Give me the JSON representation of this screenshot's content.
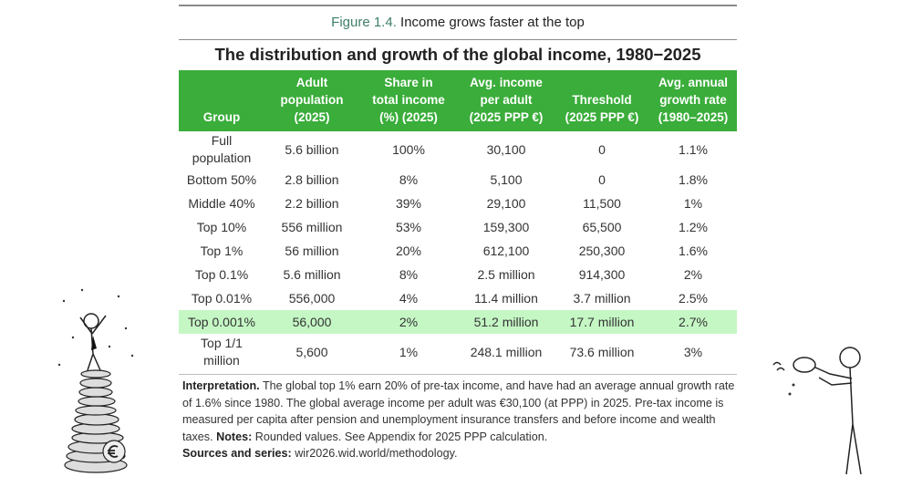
{
  "figure": {
    "number": "Figure 1.4.",
    "title": "Income grows faster at the top"
  },
  "subtitle": "The distribution and growth of the global income, 1980−2025",
  "table": {
    "headers": [
      [
        "Group"
      ],
      [
        "Adult",
        "population",
        "(2025)"
      ],
      [
        "Share in",
        "total income",
        "(%) (2025)"
      ],
      [
        "Avg. income",
        "per adult",
        "(2025 PPP €)"
      ],
      [
        "Threshold",
        "(2025 PPP €)"
      ],
      [
        "Avg. annual",
        "growth rate",
        "(1980–2025)"
      ]
    ],
    "rows": [
      [
        "Full population",
        "5.6 billion",
        "100%",
        "30,100",
        "0",
        "1.1%"
      ],
      [
        "Bottom 50%",
        "2.8 billion",
        "8%",
        "5,100",
        "0",
        "1.8%"
      ],
      [
        "Middle 40%",
        "2.2 billion",
        "39%",
        "29,100",
        "11,500",
        "1%"
      ],
      [
        "Top 10%",
        "556 million",
        "53%",
        "159,300",
        "65,500",
        "1.2%"
      ],
      [
        "Top 1%",
        "56 million",
        "20%",
        "612,100",
        "250,300",
        "1.6%"
      ],
      [
        "Top 0.1%",
        "5.6 million",
        "8%",
        "2.5 million",
        "914,300",
        "2%"
      ],
      [
        "Top 0.01%",
        "556,000",
        "4%",
        "11.4 million",
        "3.7 million",
        "2.5%"
      ],
      [
        "Top 0.001%",
        "56,000",
        "2%",
        "51.2 million",
        "17.7 million",
        "2.7%"
      ],
      [
        "Top 1/1 million",
        "5,600",
        "1%",
        "248.1 million",
        "73.6 million",
        "3%"
      ]
    ],
    "highlighted_row": "Top 0.001%"
  },
  "notes": {
    "interpretation_label": "Interpretation.",
    "interpretation": " The global top 1% earn 20% of pre-tax income, and have had an average annual growth rate of 1.6% since 1980. The global average income per adult was €30,100 (at PPP) in 2025. Pre-tax income is measured per capita after pension and unemployment insurance transfers and before income and wealth taxes. ",
    "notes_label": "Notes:",
    "notes": " Rounded values. See Appendix for 2025 PPP calculation.",
    "sources_label": "Sources and series:",
    "sources": " wir2026.wid.world/methodology."
  },
  "colors": {
    "header_green": "#3aad3a",
    "highlight": "#96f096",
    "figure_number": "#3f7f6a"
  }
}
